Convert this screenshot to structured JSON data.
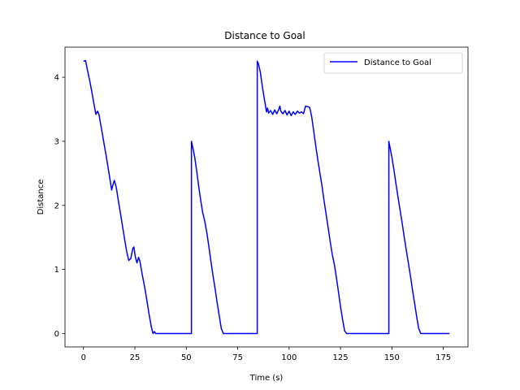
{
  "chart_data": {
    "type": "line",
    "title": "Distance to Goal",
    "xlabel": "Time (s)",
    "ylabel": "Distance",
    "xlim": [
      -9,
      187
    ],
    "ylim": [
      -0.21,
      4.47
    ],
    "xticks": [
      0,
      25,
      50,
      75,
      100,
      125,
      150,
      175
    ],
    "yticks": [
      0,
      1,
      2,
      3,
      4
    ],
    "grid": false,
    "legend": {
      "position": "top-right",
      "entries": [
        "Distance to Goal"
      ]
    },
    "series": [
      {
        "name": "Distance to Goal",
        "color": "#0000ff",
        "points": [
          [
            0,
            4.25
          ],
          [
            1,
            4.26
          ],
          [
            2,
            4.1
          ],
          [
            3,
            3.95
          ],
          [
            4,
            3.78
          ],
          [
            5,
            3.6
          ],
          [
            6,
            3.42
          ],
          [
            6.8,
            3.47
          ],
          [
            7.5,
            3.42
          ],
          [
            9,
            3.15
          ],
          [
            10,
            2.96
          ],
          [
            11,
            2.78
          ],
          [
            12,
            2.58
          ],
          [
            13,
            2.38
          ],
          [
            13.7,
            2.24
          ],
          [
            14.3,
            2.32
          ],
          [
            15,
            2.39
          ],
          [
            16,
            2.27
          ],
          [
            17,
            2.06
          ],
          [
            18,
            1.87
          ],
          [
            19,
            1.67
          ],
          [
            20,
            1.47
          ],
          [
            21,
            1.28
          ],
          [
            22,
            1.14
          ],
          [
            23,
            1.17
          ],
          [
            24,
            1.33
          ],
          [
            24.5,
            1.35
          ],
          [
            25.2,
            1.2
          ],
          [
            26,
            1.1
          ],
          [
            26.8,
            1.19
          ],
          [
            27.5,
            1.12
          ],
          [
            28.5,
            0.93
          ],
          [
            30,
            0.68
          ],
          [
            31,
            0.48
          ],
          [
            32,
            0.28
          ],
          [
            33,
            0.1
          ],
          [
            33.8,
            0.0
          ],
          [
            34.5,
            0.03
          ],
          [
            35,
            0.0
          ],
          [
            52.5,
            0.0
          ],
          [
            52.5,
            3.0
          ],
          [
            54,
            2.77
          ],
          [
            55,
            2.55
          ],
          [
            56,
            2.3
          ],
          [
            57,
            2.08
          ],
          [
            58,
            1.88
          ],
          [
            59,
            1.75
          ],
          [
            60,
            1.57
          ],
          [
            61,
            1.35
          ],
          [
            62,
            1.12
          ],
          [
            63,
            0.9
          ],
          [
            64,
            0.7
          ],
          [
            65,
            0.48
          ],
          [
            66,
            0.28
          ],
          [
            67,
            0.08
          ],
          [
            68,
            0.0
          ],
          [
            84.5,
            0.0
          ],
          [
            84.5,
            4.25
          ],
          [
            85,
            4.22
          ],
          [
            86,
            4.08
          ],
          [
            87,
            3.85
          ],
          [
            88,
            3.65
          ],
          [
            89,
            3.46
          ],
          [
            89.5,
            3.52
          ],
          [
            90,
            3.44
          ],
          [
            91,
            3.48
          ],
          [
            92,
            3.42
          ],
          [
            93,
            3.49
          ],
          [
            94,
            3.43
          ],
          [
            95,
            3.5
          ],
          [
            95.5,
            3.55
          ],
          [
            96,
            3.47
          ],
          [
            97,
            3.43
          ],
          [
            98,
            3.48
          ],
          [
            99,
            3.41
          ],
          [
            100,
            3.47
          ],
          [
            101,
            3.4
          ],
          [
            102,
            3.46
          ],
          [
            103,
            3.42
          ],
          [
            104,
            3.47
          ],
          [
            105,
            3.44
          ],
          [
            106,
            3.46
          ],
          [
            107,
            3.43
          ],
          [
            108,
            3.55
          ],
          [
            109,
            3.54
          ],
          [
            110,
            3.53
          ],
          [
            111,
            3.38
          ],
          [
            112,
            3.15
          ],
          [
            113,
            2.92
          ],
          [
            114,
            2.7
          ],
          [
            115,
            2.5
          ],
          [
            116,
            2.3
          ],
          [
            117,
            2.07
          ],
          [
            118,
            1.86
          ],
          [
            119,
            1.65
          ],
          [
            120,
            1.43
          ],
          [
            121,
            1.23
          ],
          [
            122,
            1.08
          ],
          [
            123,
            0.87
          ],
          [
            124,
            0.65
          ],
          [
            125,
            0.42
          ],
          [
            126,
            0.22
          ],
          [
            127,
            0.04
          ],
          [
            128,
            0.0
          ],
          [
            148.5,
            0.0
          ],
          [
            148.5,
            3.0
          ],
          [
            150,
            2.75
          ],
          [
            151,
            2.55
          ],
          [
            152,
            2.33
          ],
          [
            153,
            2.12
          ],
          [
            154,
            1.92
          ],
          [
            155,
            1.72
          ],
          [
            156,
            1.5
          ],
          [
            157,
            1.3
          ],
          [
            158,
            1.1
          ],
          [
            159,
            0.9
          ],
          [
            160,
            0.68
          ],
          [
            161,
            0.48
          ],
          [
            162,
            0.27
          ],
          [
            163,
            0.08
          ],
          [
            164,
            0.0
          ],
          [
            178,
            0.0
          ]
        ]
      }
    ]
  }
}
